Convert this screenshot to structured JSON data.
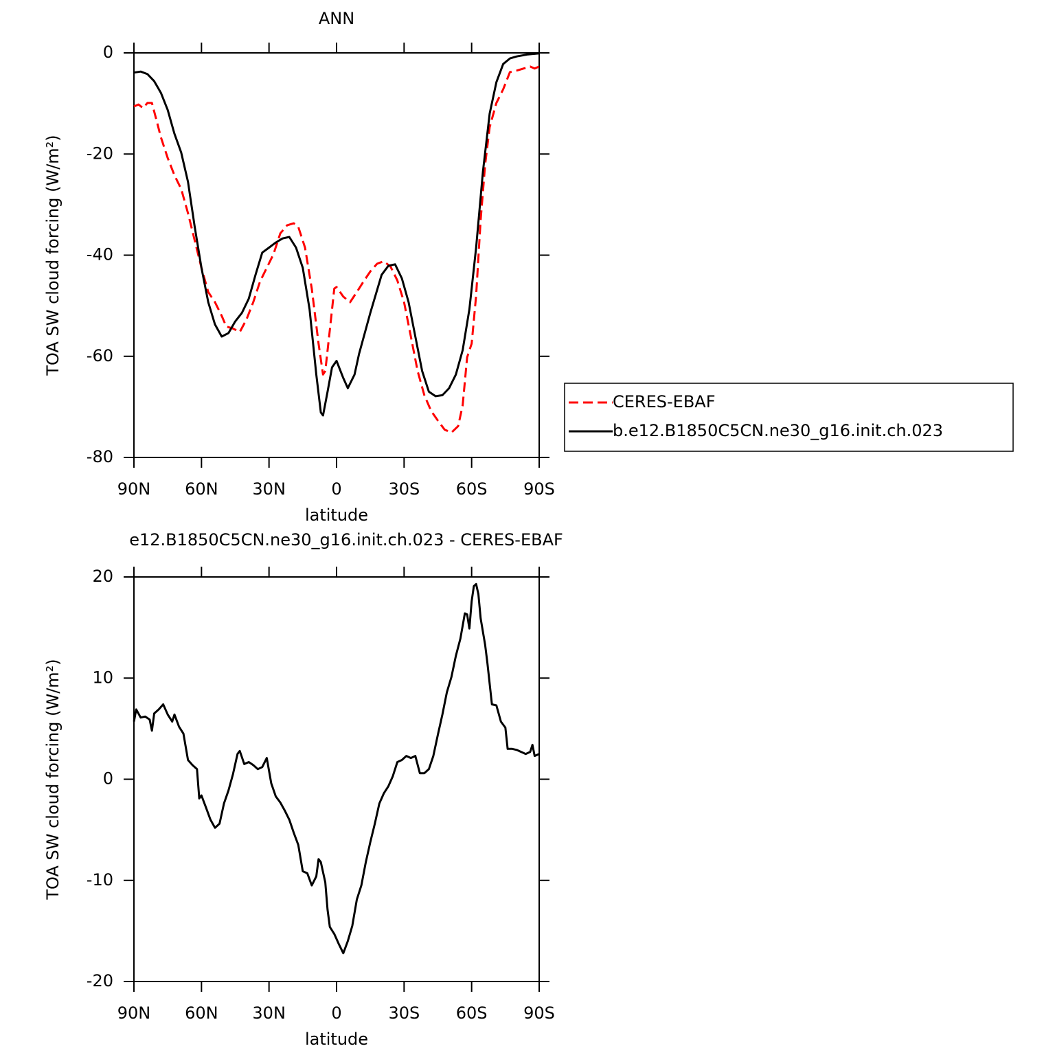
{
  "chart_data": [
    {
      "type": "line",
      "title": "ANN",
      "xlabel": "latitude",
      "ylabel": "TOA SW cloud forcing (W/m²)",
      "xlim": [
        90,
        -90
      ],
      "ylim": [
        -80,
        0
      ],
      "xticks": [
        {
          "value": 90,
          "label": "90N"
        },
        {
          "value": 60,
          "label": "60N"
        },
        {
          "value": 30,
          "label": "30N"
        },
        0,
        {
          "value": -30,
          "label": "30S"
        },
        {
          "value": -60,
          "label": "60S"
        },
        {
          "value": -90,
          "label": "90S"
        }
      ],
      "yticks": [
        0,
        -20,
        -40,
        -60,
        -80
      ],
      "legend": "right",
      "series": [
        {
          "name": "CERES-EBAF",
          "color": "#ff0000",
          "linestyle": "dashed",
          "x": [
            90,
            88,
            86,
            84,
            82,
            80,
            78,
            75,
            72,
            69,
            66,
            63,
            60,
            57,
            54,
            51,
            49,
            46,
            43,
            40,
            37,
            34,
            31,
            28,
            25,
            22,
            19,
            17,
            14,
            11,
            8,
            6,
            5,
            3,
            1,
            0,
            -3,
            -6,
            -9,
            -12,
            -15,
            -18,
            -21,
            -24,
            -27,
            -30,
            -33,
            -36,
            -39,
            -42,
            -45,
            -48,
            -51,
            -54,
            -56,
            -58,
            -60,
            -62,
            -64,
            -66,
            -68,
            -71,
            -74,
            -77,
            -80,
            -83,
            -86,
            -88,
            -90
          ],
          "values": [
            -10.6,
            -10.2,
            -10.9,
            -9.9,
            -9.9,
            -13.3,
            -16.7,
            -20.8,
            -24.2,
            -26.9,
            -31.7,
            -37.1,
            -42.5,
            -47.3,
            -49.3,
            -52,
            -54.1,
            -54.5,
            -55.2,
            -52.7,
            -49.3,
            -45.2,
            -42.5,
            -39.8,
            -35.7,
            -34.1,
            -33.7,
            -34.4,
            -38.5,
            -46.6,
            -57.5,
            -63.6,
            -62.9,
            -54.8,
            -46.6,
            -46.3,
            -48.2,
            -49.3,
            -47.3,
            -45.2,
            -43.2,
            -41.7,
            -41.2,
            -42.3,
            -45,
            -49.3,
            -56.1,
            -62.9,
            -67.7,
            -70.8,
            -72.7,
            -74.5,
            -75.1,
            -73.8,
            -69.7,
            -60.2,
            -57.5,
            -48,
            -33,
            -22.1,
            -14.7,
            -9.9,
            -7.2,
            -3.8,
            -3.5,
            -3.1,
            -2.7,
            -3.1,
            -2.7
          ]
        },
        {
          "name": "b.e12.B1850C5CN.ne30_g16.init.ch.023",
          "color": "#000000",
          "linestyle": "solid",
          "x": [
            90,
            87,
            84,
            81,
            78,
            75,
            72,
            69,
            66,
            63,
            60,
            57,
            54,
            51,
            48,
            45,
            42,
            39,
            36,
            33,
            30,
            27,
            24,
            21,
            18,
            15,
            12,
            9,
            7,
            6,
            4,
            2,
            0,
            -3,
            -5,
            -8,
            -10,
            -15,
            -20,
            -23,
            -26,
            -29,
            -32,
            -35,
            -38,
            -41,
            -44,
            -47,
            -50,
            -53,
            -56,
            -59,
            -62,
            -65,
            -68,
            -71,
            -74,
            -77,
            -80,
            -85,
            -90
          ],
          "values": [
            -3.9,
            -3.7,
            -4.2,
            -5.6,
            -7.9,
            -11.3,
            -16,
            -19.7,
            -25.5,
            -34.4,
            -42.5,
            -49.3,
            -53.7,
            -56.1,
            -55.4,
            -53.1,
            -51.4,
            -48.6,
            -43.9,
            -39.5,
            -38.5,
            -37.5,
            -36.7,
            -36.4,
            -38.5,
            -42.5,
            -50.7,
            -63.6,
            -71.1,
            -71.7,
            -67,
            -62.2,
            -60.9,
            -64.3,
            -66.3,
            -63.6,
            -59.5,
            -51.4,
            -43.9,
            -42.1,
            -41.8,
            -44.6,
            -49.3,
            -56.1,
            -62.9,
            -67,
            -67.9,
            -67.7,
            -66.3,
            -63.6,
            -58.8,
            -50.7,
            -38.5,
            -23.5,
            -12,
            -5.8,
            -2.2,
            -1.1,
            -0.7,
            -0.3,
            -0.1
          ]
        }
      ]
    },
    {
      "type": "line",
      "title": "e12.B1850C5CN.ne30_g16.init.ch.023 - CERES-EBAF",
      "xlabel": "latitude",
      "ylabel": "TOA SW cloud forcing (W/m²)",
      "xlim": [
        90,
        -90
      ],
      "ylim": [
        -20,
        20
      ],
      "xticks": [
        {
          "value": 90,
          "label": "90N"
        },
        {
          "value": 60,
          "label": "60N"
        },
        {
          "value": 30,
          "label": "30N"
        },
        0,
        {
          "value": -30,
          "label": "30S"
        },
        {
          "value": -60,
          "label": "60S"
        },
        {
          "value": -90,
          "label": "90S"
        }
      ],
      "yticks": [
        20,
        10,
        0,
        -10,
        -20
      ],
      "series": [
        {
          "color": "#000000",
          "linestyle": "solid",
          "x": [
            90,
            89,
            87,
            85,
            83,
            82,
            81,
            79,
            77,
            75,
            73,
            72,
            70,
            68,
            66,
            64,
            62,
            61,
            60,
            58,
            56,
            54,
            52,
            50,
            48,
            46,
            44,
            43,
            41,
            39,
            37,
            35,
            33,
            31,
            29,
            27,
            25,
            23,
            21,
            19,
            17,
            15,
            13,
            11,
            9,
            8,
            7,
            5,
            4,
            3,
            1,
            -1,
            -3,
            -5,
            -7,
            -9,
            -11,
            -13,
            -15,
            -17,
            -19,
            -21,
            -23,
            -25,
            -27,
            -29,
            -31,
            -33,
            -35,
            -37,
            -39,
            -41,
            -43,
            -45,
            -47,
            -49,
            -51,
            -53,
            -55,
            -57,
            -58,
            -59,
            -60,
            -61,
            -62,
            -63,
            -64,
            -66,
            -67,
            -69,
            -71,
            -73,
            -75,
            -76,
            -78,
            -80,
            -82,
            -84,
            -86,
            -87,
            -88,
            -90
          ],
          "values": [
            5.7,
            6.9,
            6.1,
            6.2,
            5.9,
            4.8,
            6.5,
            6.9,
            7.4,
            6.4,
            5.7,
            6.4,
            5.2,
            4.5,
            1.9,
            1.4,
            1,
            -1.9,
            -1.6,
            -2.8,
            -4,
            -4.8,
            -4.4,
            -2.4,
            -1.1,
            0.5,
            2.5,
            2.8,
            1.5,
            1.7,
            1.4,
            1,
            1.2,
            2.1,
            -0.4,
            -1.7,
            -2.3,
            -3.1,
            -4,
            -5.3,
            -6.5,
            -9.1,
            -9.3,
            -10.5,
            -9.6,
            -7.9,
            -8.2,
            -10.2,
            -12.9,
            -14.6,
            -15.3,
            -16.3,
            -17.2,
            -16,
            -14.5,
            -11.9,
            -10.5,
            -8.2,
            -6.2,
            -4.4,
            -2.4,
            -1.4,
            -0.7,
            0.3,
            1.7,
            1.9,
            2.3,
            2.1,
            2.3,
            0.6,
            0.6,
            1,
            2.3,
            4.4,
            6.4,
            8.6,
            10.1,
            12.2,
            13.9,
            16.4,
            16.3,
            14.9,
            17.6,
            19.1,
            19.3,
            18.3,
            15.9,
            13.3,
            11.5,
            7.4,
            7.3,
            5.7,
            5.1,
            3,
            3,
            2.9,
            2.7,
            2.5,
            2.7,
            3.4,
            2.3,
            2.5
          ]
        }
      ]
    }
  ]
}
